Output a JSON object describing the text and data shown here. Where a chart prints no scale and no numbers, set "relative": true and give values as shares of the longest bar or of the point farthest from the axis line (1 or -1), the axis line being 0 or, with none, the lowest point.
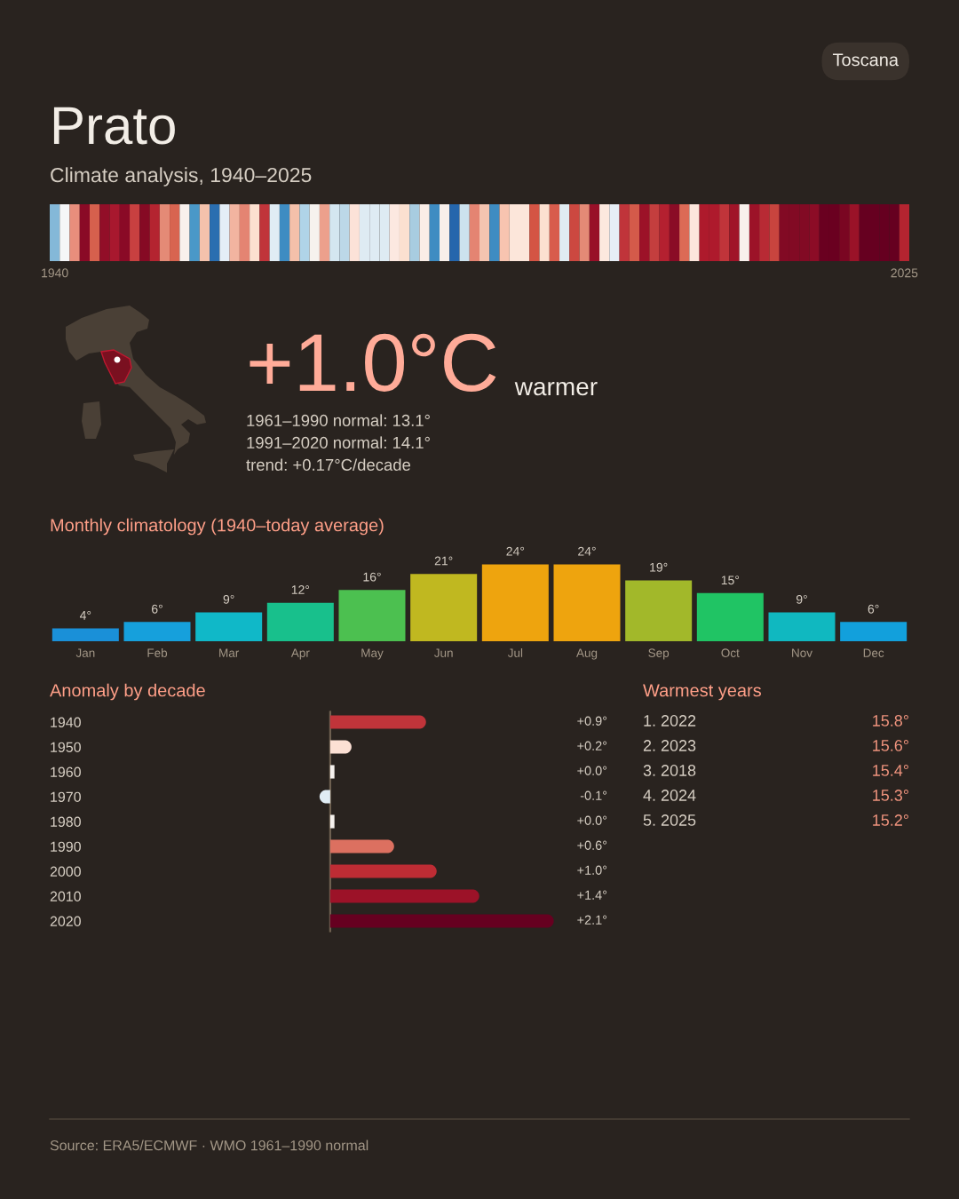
{
  "chart_data": [
    {
      "type": "bar",
      "title": "Prato",
      "subtitle": "Climate analysis, 1940–2025",
      "relative": true,
      "categories": [
        "1940",
        null,
        null,
        null,
        null,
        null,
        null,
        null,
        null,
        null,
        null,
        null,
        null,
        null,
        null,
        null,
        null,
        null,
        null,
        null,
        null,
        null,
        null,
        null,
        null,
        null,
        null,
        null,
        null,
        null,
        null,
        null,
        null,
        null,
        null,
        null,
        null,
        null,
        null,
        null,
        null,
        null,
        null,
        null,
        null,
        null,
        null,
        null,
        null,
        null,
        null,
        null,
        null,
        null,
        null,
        null,
        null,
        null,
        null,
        null,
        null,
        null,
        null,
        null,
        null,
        null,
        null,
        null,
        null,
        null,
        null,
        null,
        null,
        null,
        null,
        null,
        null,
        null,
        null,
        null,
        null,
        null,
        null,
        null,
        null,
        "2025"
      ],
      "values": [
        1,
        1,
        1,
        1,
        1,
        1,
        1,
        1,
        1,
        1,
        1,
        1,
        1,
        1,
        1,
        1,
        1,
        1,
        1,
        1,
        1,
        1,
        1,
        1,
        1,
        1,
        1,
        1,
        1,
        1,
        1,
        1,
        1,
        1,
        1,
        1,
        1,
        1,
        1,
        1,
        1,
        1,
        1,
        1,
        1,
        1,
        1,
        1,
        1,
        1,
        1,
        1,
        1,
        1,
        1,
        1,
        1,
        1,
        1,
        1,
        1,
        1,
        1,
        1,
        1,
        1,
        1,
        1,
        1,
        1,
        1,
        1,
        1,
        1,
        1,
        1,
        1,
        1,
        1,
        1,
        1,
        1,
        1,
        1,
        1,
        1
      ],
      "colors": [
        "#84b8d8",
        "#f5f6f8",
        "#e88e7c",
        "#8a0a26",
        "#d6604d",
        "#920e28",
        "#a8182e",
        "#8a0a26",
        "#c84040",
        "#860a24",
        "#b42430",
        "#e48a76",
        "#d86450",
        "#f8f0ec",
        "#4a98c8",
        "#f4c2ac",
        "#2a6eb0",
        "#e4eef6",
        "#f2b4a0",
        "#e48472",
        "#fce0d0",
        "#c0343a",
        "#e0ecf4",
        "#3e8cc2",
        "#f4c0aa",
        "#b0d4e8",
        "#f6f2ee",
        "#eca08c",
        "#d4e6f0",
        "#bcd8e8",
        "#fce2d8",
        "#deebf3",
        "#deebf3",
        "#deebf3",
        "#fce8e0",
        "#fbe0d0",
        "#a8cce0",
        "#faede6",
        "#3e8cc2",
        "#f8efea",
        "#2566ac",
        "#cce2ee",
        "#e48472",
        "#f4c4b0",
        "#3e8cc2",
        "#f8c4b0",
        "#fce6da",
        "#fce6da",
        "#d45444",
        "#fce0d0",
        "#d85c4c",
        "#e0ecf2",
        "#cc4840",
        "#e48a76",
        "#981028",
        "#fce8de",
        "#e6eef6",
        "#c0343a",
        "#d45a4a",
        "#9c1228",
        "#c43e3e",
        "#b42030",
        "#8a0c26",
        "#dc6a56",
        "#fce6dc",
        "#ae1a2c",
        "#ae1a2c",
        "#c0343a",
        "#a01428",
        "#f8f0ec",
        "#9c1228",
        "#b82a34",
        "#c8443e",
        "#820a24",
        "#820a24",
        "#820a24",
        "#8c0c26",
        "#6a0020",
        "#6a0020",
        "#7a0622",
        "#9a1228",
        "#660020",
        "#660020",
        "#660020",
        "#660020",
        "#b42430"
      ],
      "annotations": [
        "Toscana",
        "Source: ERA5/ECMWF · WMO 1961–1990 normal"
      ]
    },
    {
      "type": "other",
      "annotations": [
        "+1.0°C",
        "warmer",
        "1961–1990 normal: 13.1°",
        "1991–2020 normal: 14.1°",
        "trend: +0.17°C/decade"
      ]
    },
    {
      "type": "bar",
      "title": "Monthly climatology (1940–today average)",
      "categories": [
        "Jan",
        "Feb",
        "Mar",
        "Apr",
        "May",
        "Jun",
        "Jul",
        "Aug",
        "Sep",
        "Oct",
        "Nov",
        "Dec"
      ],
      "values": [
        4,
        6,
        9,
        12,
        16,
        21,
        24,
        24,
        19,
        15,
        9,
        6
      ],
      "colors": [
        "#1a90d8",
        "#16a0dc",
        "#10b8c8",
        "#18c08c",
        "#4cc050",
        "#c0b820",
        "#eea40e",
        "#eea40e",
        "#a2b82a",
        "#20c464",
        "#10b8c0",
        "#12a0dc"
      ],
      "value_labels": [
        "4°",
        "6°",
        "9°",
        "12°",
        "16°",
        "21°",
        "24°",
        "24°",
        "19°",
        "15°",
        "9°",
        "6°"
      ]
    },
    {
      "type": "bar",
      "orientation": "horizontal",
      "title": "Anomaly by decade",
      "categories": [
        "1940",
        "1950",
        "1960",
        "1970",
        "1980",
        "1990",
        "2000",
        "2010",
        "2020"
      ],
      "values": [
        0.9,
        0.2,
        0.04,
        -0.1,
        0.04,
        0.6,
        1.0,
        1.4,
        2.1
      ],
      "colors": [
        "#c0343a",
        "#fce0d4",
        "#f6f2ee",
        "#e0ecf4",
        "#f6f2ee",
        "#dc7060",
        "#be2c34",
        "#9c1228",
        "#660020"
      ],
      "value_labels": [
        "+0.9°",
        "+0.2°",
        "+0.0°",
        "-0.1°",
        "+0.0°",
        "+0.6°",
        "+1.0°",
        "+1.4°",
        "+2.1°"
      ],
      "ref_lines": [
        {
          "axis": "x",
          "value": 0,
          "color": "#6e6050"
        }
      ]
    },
    {
      "type": "other",
      "title": "Warmest years",
      "annotations": [
        "1. 2022",
        "15.8°",
        "2. 2023",
        "15.6°",
        "3. 2018",
        "15.4°",
        "4. 2024",
        "15.3°",
        "5. 2025",
        "15.2°"
      ]
    }
  ]
}
